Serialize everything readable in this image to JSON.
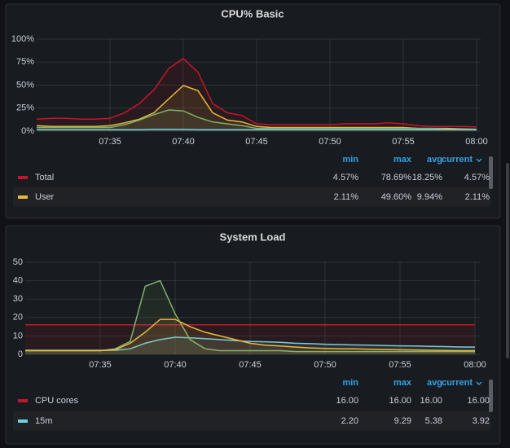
{
  "chart_data": [
    {
      "type": "line",
      "title": "CPU% Basic",
      "x": [
        "07:30",
        "07:31",
        "07:32",
        "07:33",
        "07:34",
        "07:35",
        "07:36",
        "07:37",
        "07:38",
        "07:39",
        "07:40",
        "07:41",
        "07:42",
        "07:43",
        "07:44",
        "07:45",
        "07:46",
        "07:47",
        "07:48",
        "07:49",
        "07:50",
        "07:51",
        "07:52",
        "07:53",
        "07:54",
        "07:55",
        "07:56",
        "07:57",
        "07:58",
        "07:59",
        "08:00"
      ],
      "xlim": [
        "07:30",
        "08:00"
      ],
      "xticks": [
        "07:35",
        "07:40",
        "07:45",
        "07:50",
        "07:55",
        "08:00"
      ],
      "ylim": [
        0,
        100
      ],
      "yticks": [
        {
          "value": 0,
          "label": "0%"
        },
        {
          "value": 25,
          "label": "25%"
        },
        {
          "value": 50,
          "label": "50%"
        },
        {
          "value": 75,
          "label": "75%"
        },
        {
          "value": 100,
          "label": "100%"
        }
      ],
      "grid": true,
      "legend_columns": [
        "min",
        "max",
        "avg",
        "current"
      ],
      "series": [
        {
          "name": "Total",
          "color": "#c4162a",
          "values": [
            13,
            14,
            14,
            13,
            13,
            14,
            20,
            30,
            45,
            68,
            79,
            64,
            30,
            20,
            17,
            8,
            7,
            7,
            7,
            7,
            7,
            8,
            8,
            8,
            9,
            8,
            6,
            5,
            5,
            5,
            4.57
          ],
          "legend_values": [
            "4.57%",
            "78.69%",
            "18.25%",
            "4.57%"
          ]
        },
        {
          "name": "User",
          "color": "#eab839",
          "values": [
            6,
            5,
            5,
            5,
            5,
            6,
            9,
            13,
            20,
            35,
            49.6,
            44,
            20,
            12,
            10,
            5,
            4,
            4,
            4,
            4,
            4,
            4,
            4,
            4,
            4,
            4,
            3,
            3,
            3,
            2.5,
            2.11
          ],
          "legend_values": [
            "2.11%",
            "49.60%",
            "9.94%",
            "2.11%"
          ]
        },
        {
          "color": "#7eb26d",
          "values": [
            4,
            4,
            4,
            4,
            4,
            4,
            7,
            12,
            18,
            23,
            22,
            15,
            10,
            8,
            6,
            3,
            3,
            3,
            3,
            3,
            3,
            3,
            3,
            3,
            3,
            3,
            3,
            3,
            2,
            2,
            2
          ]
        },
        {
          "color": "#6ed0e0",
          "values": [
            1.5,
            1.5,
            1.5,
            1.5,
            1.5,
            1.5,
            1.5,
            1.5,
            2,
            2,
            2,
            1.5,
            1.5,
            1.5,
            1.5,
            1.5,
            1.5,
            1.5,
            1.5,
            1.5,
            1.5,
            1.5,
            1.5,
            1.5,
            1.5,
            1.5,
            1.5,
            1.5,
            1.5,
            1.5,
            1.5
          ]
        }
      ]
    },
    {
      "type": "line",
      "title": "System Load",
      "x": [
        "07:30",
        "07:31",
        "07:32",
        "07:33",
        "07:34",
        "07:35",
        "07:36",
        "07:37",
        "07:38",
        "07:39",
        "07:40",
        "07:41",
        "07:42",
        "07:43",
        "07:44",
        "07:45",
        "07:46",
        "07:47",
        "07:48",
        "07:49",
        "07:50",
        "07:51",
        "07:52",
        "07:53",
        "07:54",
        "07:55",
        "07:56",
        "07:57",
        "07:58",
        "07:59",
        "08:00"
      ],
      "xlim": [
        "07:30",
        "08:00"
      ],
      "xticks": [
        "07:35",
        "07:40",
        "07:45",
        "07:50",
        "07:55",
        "08:00"
      ],
      "ylim": [
        0,
        50
      ],
      "yticks": [
        0,
        10,
        20,
        30,
        40,
        50
      ],
      "grid": true,
      "legend_columns": [
        "min",
        "max",
        "avg",
        "current"
      ],
      "series": [
        {
          "name": "CPU cores",
          "color": "#c4162a",
          "values": [
            16,
            16,
            16,
            16,
            16,
            16,
            16,
            16,
            16,
            16,
            16,
            16,
            16,
            16,
            16,
            16,
            16,
            16,
            16,
            16,
            16,
            16,
            16,
            16,
            16,
            16,
            16,
            16,
            16,
            16,
            16
          ],
          "legend_values": [
            "16.00",
            "16.00",
            "16.00",
            "16.00"
          ]
        },
        {
          "name": "15m",
          "color": "#6ed0e0",
          "values": [
            2.2,
            2.2,
            2.2,
            2.2,
            2.2,
            2.2,
            2.2,
            3,
            6,
            8,
            9.29,
            9,
            8.5,
            8,
            7.5,
            7,
            6.8,
            6.5,
            6,
            5.8,
            5.5,
            5.3,
            5.1,
            5,
            4.8,
            4.6,
            4.5,
            4.3,
            4.2,
            4,
            3.92
          ],
          "legend_values": [
            "2.20",
            "9.29",
            "5.38",
            "3.92"
          ]
        },
        {
          "color": "#7eb26d",
          "values": [
            2,
            2,
            2,
            2,
            2,
            2,
            3,
            7,
            37,
            40,
            22,
            8,
            3,
            2,
            2,
            2,
            2,
            2,
            1.5,
            1.5,
            1.5,
            1.5,
            1.5,
            1.5,
            1.5,
            1.5,
            1.5,
            1.5,
            1.5,
            1.5,
            1.5
          ]
        },
        {
          "color": "#eab839",
          "values": [
            2,
            2,
            2,
            2,
            2,
            2,
            2.5,
            6,
            12,
            19,
            19,
            15,
            12,
            10,
            8,
            6,
            5,
            4.5,
            4,
            3.5,
            3.2,
            3,
            3,
            2.8,
            2.6,
            2.5,
            2.4,
            2.2,
            2.1,
            2,
            2
          ]
        }
      ]
    }
  ]
}
